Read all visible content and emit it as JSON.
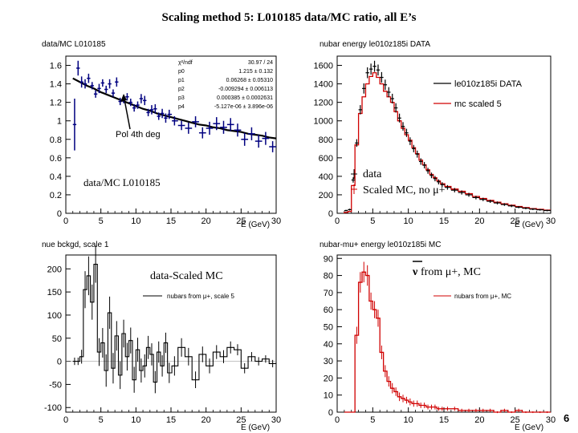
{
  "slide": {
    "title": "Scaling method 5: L010185 data/MC ratio, all E’s",
    "page_number": "6"
  },
  "colors": {
    "data": "#000000",
    "mc": "#d00000",
    "ratio_points": "#000080",
    "fit": "#000000"
  },
  "chart_data": [
    {
      "id": "ratio",
      "type": "scatter",
      "title": "data/MC L010185",
      "xlabel": "E (GeV)",
      "ylabel": "",
      "xlim": [
        0,
        30
      ],
      "ylim": [
        0,
        1.7
      ],
      "xticks": [
        0,
        5,
        10,
        15,
        20,
        25,
        30
      ],
      "yticks": [
        0,
        0.2,
        0.4,
        0.6,
        0.8,
        1,
        1.2,
        1.4,
        1.6
      ],
      "ytick_labels": [
        "0",
        "0.2",
        "0.4",
        "0.6",
        "0.8",
        "1",
        "1.2",
        "1.4",
        "1.6"
      ],
      "x": [
        1.25,
        1.75,
        2.25,
        2.75,
        3.25,
        3.75,
        4.25,
        4.75,
        5.25,
        5.75,
        6.25,
        6.75,
        7.25,
        7.75,
        8.25,
        8.75,
        9.25,
        9.75,
        10.25,
        10.75,
        11.25,
        11.75,
        12.25,
        12.75,
        13.25,
        13.75,
        14.25,
        14.75,
        15.5,
        16.5,
        17.5,
        18.5,
        19.5,
        20.5,
        21.5,
        22.5,
        23.5,
        24.5,
        25.5,
        26.5,
        27.5,
        28.5,
        29.5
      ],
      "y": [
        0.96,
        1.57,
        1.42,
        1.4,
        1.46,
        1.38,
        1.29,
        1.35,
        1.41,
        1.34,
        1.4,
        1.3,
        1.42,
        1.21,
        1.23,
        1.26,
        1.2,
        1.14,
        1.17,
        1.24,
        1.22,
        1.09,
        1.12,
        1.13,
        1.05,
        1.08,
        1.03,
        1.07,
        1.0,
        0.95,
        0.92,
        0.99,
        0.87,
        0.92,
        0.97,
        0.93,
        0.96,
        0.9,
        0.8,
        0.86,
        0.78,
        0.81,
        0.72
      ],
      "yerr": [
        0.28,
        0.08,
        0.06,
        0.05,
        0.05,
        0.04,
        0.04,
        0.05,
        0.04,
        0.04,
        0.05,
        0.04,
        0.05,
        0.04,
        0.04,
        0.04,
        0.04,
        0.04,
        0.04,
        0.05,
        0.05,
        0.04,
        0.05,
        0.05,
        0.04,
        0.05,
        0.05,
        0.05,
        0.05,
        0.05,
        0.06,
        0.06,
        0.06,
        0.07,
        0.07,
        0.07,
        0.07,
        0.07,
        0.07,
        0.07,
        0.07,
        0.07,
        0.06
      ],
      "fit_x": [
        1,
        2,
        3,
        4,
        5,
        6,
        7,
        8,
        9,
        10,
        11,
        12,
        13,
        14,
        15,
        16,
        17,
        18,
        19,
        20,
        21,
        22,
        23,
        24,
        25,
        26,
        27,
        28,
        29,
        30
      ],
      "fit_y": [
        1.46,
        1.42,
        1.38,
        1.35,
        1.31,
        1.28,
        1.25,
        1.22,
        1.19,
        1.16,
        1.13,
        1.11,
        1.08,
        1.06,
        1.04,
        1.02,
        1.0,
        0.98,
        0.96,
        0.95,
        0.93,
        0.92,
        0.9,
        0.89,
        0.88,
        0.86,
        0.85,
        0.84,
        0.82,
        0.81
      ],
      "stats": [
        [
          "χ²/ndf",
          "30.97 / 24"
        ],
        [
          "p0",
          "1.215 ± 0.132"
        ],
        [
          "p1",
          "0.06268 ± 0.05310"
        ],
        [
          "p2",
          "-0.009294 ± 0.006113"
        ],
        [
          "p3",
          "0.000385 ± 0.0002631"
        ],
        [
          "p4",
          "-5.127e-06 ± 3.896e-06"
        ]
      ],
      "annotations": {
        "fit_label": "Pol 4th deg",
        "name_label": "data/MC L010185"
      }
    },
    {
      "id": "energy",
      "type": "line",
      "title": "nubar energy le010z185i DATA",
      "xlabel": "E (GeV)",
      "ylabel": "",
      "xlim": [
        0,
        30
      ],
      "ylim": [
        0,
        1700
      ],
      "xticks": [
        0,
        5,
        10,
        15,
        20,
        25,
        30
      ],
      "yticks": [
        0,
        200,
        400,
        600,
        800,
        1000,
        1200,
        1400,
        1600
      ],
      "ytick_labels": [
        "0",
        "200",
        "400",
        "600",
        "800",
        "1000",
        "1200",
        "1400",
        "1600"
      ],
      "x": [
        1.25,
        1.75,
        2.25,
        2.75,
        3.25,
        3.75,
        4.25,
        4.75,
        5.25,
        5.75,
        6.25,
        6.75,
        7.25,
        7.75,
        8.25,
        8.75,
        9.25,
        9.75,
        10.25,
        10.75,
        11.25,
        11.75,
        12.25,
        12.75,
        13.25,
        13.75,
        14.25,
        14.75,
        15.5,
        16.5,
        17.5,
        18.5,
        19.5,
        20.5,
        21.5,
        22.5,
        23.5,
        24.5,
        25.5,
        26.5,
        27.5,
        28.5,
        29.5
      ],
      "data": [
        30,
        40,
        360,
        760,
        1120,
        1350,
        1520,
        1560,
        1590,
        1550,
        1470,
        1390,
        1310,
        1240,
        1140,
        1030,
        940,
        870,
        780,
        700,
        640,
        560,
        520,
        460,
        410,
        375,
        340,
        310,
        280,
        250,
        225,
        200,
        170,
        150,
        130,
        112,
        95,
        80,
        66,
        55,
        45,
        38,
        30
      ],
      "mc": [
        10,
        20,
        300,
        740,
        1080,
        1260,
        1400,
        1480,
        1520,
        1470,
        1400,
        1320,
        1260,
        1200,
        1100,
        1000,
        920,
        850,
        790,
        710,
        645,
        575,
        525,
        470,
        420,
        385,
        350,
        320,
        290,
        262,
        238,
        212,
        182,
        160,
        140,
        120,
        103,
        88,
        74,
        62,
        51,
        43,
        35
      ],
      "legend": [
        "le010z185i DATA",
        "mc scaled 5"
      ],
      "annotations": {
        "line1": "data",
        "line2": "Scaled MC, no μ+"
      }
    },
    {
      "id": "background",
      "type": "line",
      "title": "nue bckgd, scale 1",
      "xlabel": "E (GeV)",
      "ylabel": "",
      "xlim": [
        0,
        30
      ],
      "ylim": [
        -110,
        230
      ],
      "xticks": [
        0,
        5,
        10,
        15,
        20,
        25,
        30
      ],
      "yticks": [
        -100,
        -50,
        0,
        50,
        100,
        150,
        200
      ],
      "ytick_labels": [
        "-100",
        "-50",
        "0",
        "50",
        "100",
        "150",
        "200"
      ],
      "x": [
        1.25,
        1.75,
        2.25,
        2.75,
        3.25,
        3.75,
        4.25,
        4.75,
        5.25,
        5.75,
        6.25,
        6.75,
        7.25,
        7.75,
        8.25,
        8.75,
        9.25,
        9.75,
        10.25,
        10.75,
        11.25,
        11.75,
        12.25,
        12.75,
        13.25,
        13.75,
        14.25,
        14.75,
        15.5,
        16.5,
        17.5,
        18.5,
        19.5,
        20.5,
        21.5,
        22.5,
        23.5,
        24.5,
        25.5,
        26.5,
        27.5,
        28.5,
        29.5
      ],
      "y": [
        0,
        0,
        10,
        155,
        185,
        128,
        210,
        20,
        40,
        -20,
        105,
        -15,
        55,
        -30,
        60,
        10,
        45,
        -40,
        25,
        -20,
        -10,
        30,
        15,
        -45,
        20,
        -10,
        40,
        -25,
        -10,
        30,
        10,
        -40,
        15,
        -10,
        20,
        10,
        30,
        25,
        -15,
        10,
        0,
        5,
        -5
      ],
      "yerr": [
        8,
        8,
        15,
        40,
        42,
        38,
        40,
        30,
        32,
        35,
        35,
        33,
        32,
        30,
        30,
        30,
        28,
        28,
        26,
        26,
        25,
        25,
        24,
        24,
        23,
        23,
        22,
        22,
        21,
        20,
        19,
        18,
        17,
        16,
        15,
        14,
        13,
        12,
        11,
        10,
        9,
        8,
        8
      ],
      "legend": [
        "nubars from μ+, scale 5"
      ],
      "annotations": {
        "label": "data-Scaled MC"
      }
    },
    {
      "id": "muplus",
      "type": "line",
      "title": "nubar-mu+ energy le010z185i MC",
      "xlabel": "E (GeV)",
      "ylabel": "",
      "xlim": [
        0,
        30
      ],
      "ylim": [
        0,
        92
      ],
      "xticks": [
        0,
        5,
        10,
        15,
        20,
        25,
        30
      ],
      "yticks": [
        0,
        10,
        20,
        30,
        40,
        50,
        60,
        70,
        80,
        90
      ],
      "ytick_labels": [
        "0",
        "10",
        "20",
        "30",
        "40",
        "50",
        "60",
        "70",
        "80",
        "90"
      ],
      "x": [
        1.25,
        1.75,
        2.25,
        2.75,
        3.25,
        3.75,
        4.25,
        4.75,
        5.25,
        5.75,
        6.25,
        6.75,
        7.25,
        7.75,
        8.25,
        8.75,
        9.25,
        9.75,
        10.25,
        10.75,
        11.25,
        11.75,
        12.25,
        12.75,
        13.25,
        13.75,
        14.25,
        14.75,
        15.5,
        16.5,
        17.5,
        18.5,
        19.5,
        20.5,
        21.5,
        22.5,
        23.5,
        24.5,
        25.5,
        26.5,
        27.5,
        28.5,
        29.5
      ],
      "y": [
        0,
        0,
        0,
        45,
        76,
        82,
        80,
        65,
        60,
        55,
        35,
        24,
        18,
        14,
        12,
        9,
        8,
        7,
        6,
        5,
        5,
        4,
        4,
        3,
        3,
        3,
        2,
        2,
        2,
        2,
        1,
        1,
        1,
        1,
        1,
        0,
        1,
        0,
        1,
        0,
        0,
        0,
        0
      ],
      "yerr": [
        0,
        0,
        0,
        5,
        6,
        6,
        6,
        5,
        5,
        5,
        4,
        3.5,
        3,
        3,
        2.5,
        2.5,
        2.2,
        2,
        2,
        1.8,
        1.8,
        1.6,
        1.6,
        1.4,
        1.4,
        1.4,
        1.2,
        1.2,
        1.2,
        1.2,
        1,
        1,
        1,
        1,
        1,
        0.5,
        1,
        0.5,
        1,
        0.5,
        0.5,
        0.5,
        0.5
      ],
      "legend": [
        "nubars from μ+, MC"
      ],
      "annotations": {
        "nu_symbol": "ν",
        "text": " from μ+, MC"
      }
    }
  ]
}
